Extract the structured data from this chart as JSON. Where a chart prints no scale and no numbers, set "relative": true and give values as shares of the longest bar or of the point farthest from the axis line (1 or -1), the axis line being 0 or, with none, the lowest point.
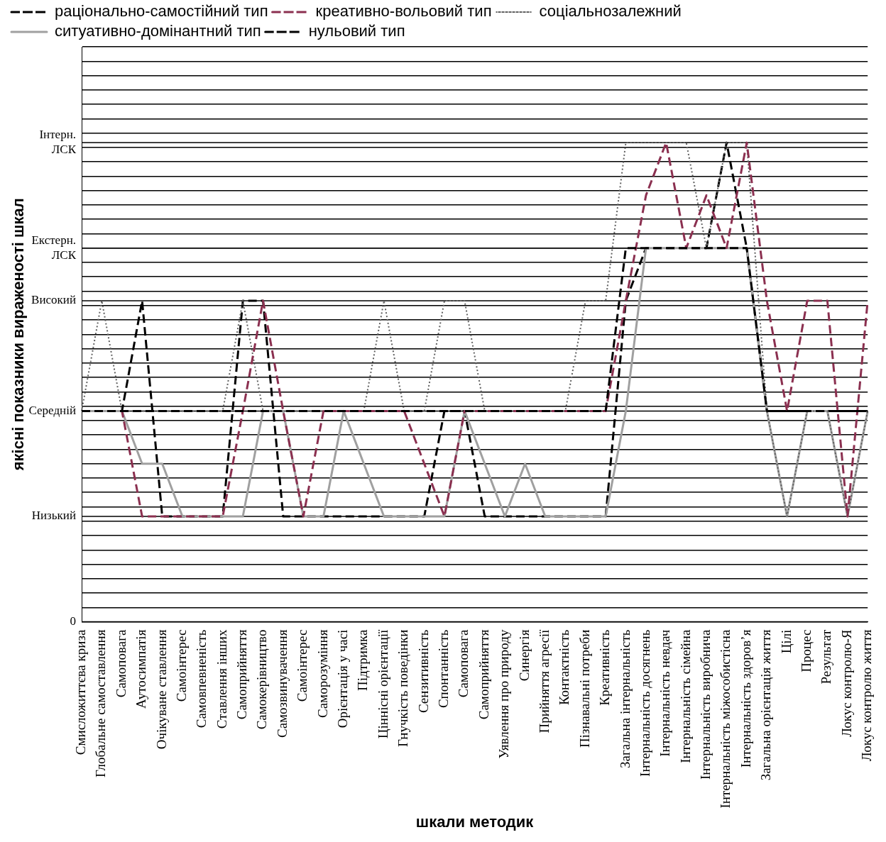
{
  "chart_data": {
    "type": "line",
    "xlabel": "шкали методик",
    "ylabel": "якісні показники вираженості шкал",
    "categories": [
      "Смисложиттєва криза",
      "Глобальне самоставлення",
      "Самоповага",
      "Аутосимпатія",
      "Очікуване ставлення",
      "Самоінтерес",
      "Самовпевненість",
      "Ставлення інших",
      "Самоприйняття",
      "Самокерівництво",
      "Самозвинувачення",
      "Самоінтерес",
      "Саморозуміння",
      "Орієнтація у часі",
      "Підтримка",
      "Ціннісні орієнтації",
      "Гнучкість поведінки",
      "Сензитивність",
      "Спонтанність",
      "Самоповага",
      "Самоприйняття",
      "Уявлення про природу",
      "Синергія",
      "Прийняття агресії",
      "Контактність",
      "Пізнавальні потреби",
      "Креативність",
      "Загальна інтернальність",
      "Інтернальність досягнень",
      "Інтернальність невдач",
      "Інтернальність сімейна",
      "Інтернальність виробнича",
      "Інтернальність міжособистісна",
      "Інтернальність здоров’я",
      "Загальна орієнтація життя",
      "Цілі",
      "Процес",
      "Результат",
      "Локус контролю-Я",
      "Локус контролю життя"
    ],
    "relative": true,
    "series": [
      {
        "name": "раціонально-самостійний тип",
        "color": "#000000",
        "line_style": "dashed",
        "values": [
          0.44,
          0.44,
          0.44,
          0.44,
          0.44,
          0.44,
          0.44,
          0.44,
          0.44,
          0.44,
          0.44,
          0.44,
          0.44,
          0.44,
          0.44,
          0.44,
          0.44,
          0.44,
          0.44,
          0.44,
          0.44,
          0.44,
          0.44,
          0.44,
          0.44,
          0.44,
          0.44,
          0.78,
          0.78,
          0.78,
          0.78,
          0.78,
          0.78,
          0.78,
          0.44,
          0.44,
          0.44,
          0.44,
          0.44,
          0.44
        ]
      },
      {
        "name": "креативно-вольовий тип",
        "color": "#8b3050",
        "line_style": "dashed",
        "values": [
          0.44,
          0.44,
          0.44,
          0.22,
          0.22,
          0.22,
          0.22,
          0.22,
          0.44,
          0.67,
          0.44,
          0.22,
          0.44,
          0.44,
          0.44,
          0.44,
          0.44,
          0.33,
          0.22,
          0.44,
          0.44,
          0.44,
          0.44,
          0.44,
          0.44,
          0.44,
          0.44,
          0.67,
          0.89,
          1,
          0.78,
          0.89,
          0.78,
          1,
          0.67,
          0.44,
          0.67,
          0.67,
          0.22,
          0.67
        ]
      },
      {
        "name": "соціальнозалежний",
        "color": "#606060",
        "line_style": "dotted",
        "values": [
          0.44,
          0.67,
          0.44,
          0.44,
          0.44,
          0.44,
          0.44,
          0.44,
          0.67,
          0.44,
          0.44,
          0.44,
          0.44,
          0.44,
          0.44,
          0.67,
          0.44,
          0.44,
          0.67,
          0.67,
          0.44,
          0.44,
          0.44,
          0.44,
          0.44,
          0.67,
          0.67,
          1,
          1,
          1,
          1,
          0.78,
          1,
          1,
          0.44,
          0.22,
          0.44,
          0.44,
          0.22,
          0.44
        ]
      },
      {
        "name": "ситуативно-домінантний тип",
        "color": "#a0a0a0",
        "line_style": "solid",
        "values": [
          0.44,
          0.44,
          0.44,
          0.33,
          0.33,
          0.22,
          0.22,
          0.22,
          0.22,
          0.44,
          0.44,
          0.22,
          0.22,
          0.44,
          0.33,
          0.22,
          0.22,
          0.22,
          0.22,
          0.44,
          0.33,
          0.22,
          0.33,
          0.22,
          0.22,
          0.22,
          0.22,
          0.44,
          0.78,
          0.78,
          0.78,
          0.78,
          0.78,
          0.78,
          0.44,
          0.22,
          0.44,
          0.44,
          0.22,
          0.44
        ]
      },
      {
        "name": "нульовий тип",
        "color": "#000000",
        "line_style": "dashed",
        "values": [
          0.44,
          0.44,
          0.44,
          0.67,
          0.22,
          0.22,
          0.22,
          0.22,
          0.67,
          0.67,
          0.22,
          0.22,
          0.22,
          0.22,
          0.22,
          0.22,
          0.22,
          0.22,
          0.44,
          0.44,
          0.22,
          0.22,
          0.22,
          0.22,
          0.22,
          0.22,
          0.22,
          0.67,
          0.78,
          0.78,
          0.78,
          0.78,
          1,
          0.78,
          0.44,
          0.44,
          0.44,
          0.44,
          0.44,
          0.44
        ]
      }
    ],
    "ref_lines": [
      {
        "axis": "y",
        "value": 0,
        "label": "0"
      },
      {
        "axis": "y",
        "value": 0.22,
        "label": "Низький"
      },
      {
        "axis": "y",
        "value": 0.44,
        "label": "Середній"
      },
      {
        "axis": "y",
        "value": 0.67,
        "label": "Високий"
      },
      {
        "axis": "y",
        "value": 0.78,
        "label": "Екстерн.\nЛСК"
      },
      {
        "axis": "y",
        "value": 1,
        "label": "Інтерн.\nЛСК"
      }
    ],
    "grid": "y",
    "legend": "top left",
    "marker": "none"
  }
}
